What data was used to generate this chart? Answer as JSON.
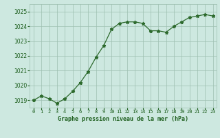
{
  "x": [
    0,
    1,
    2,
    3,
    4,
    5,
    6,
    7,
    8,
    9,
    10,
    11,
    12,
    13,
    14,
    15,
    16,
    17,
    18,
    19,
    20,
    21,
    22,
    23
  ],
  "y": [
    1019.0,
    1019.3,
    1019.1,
    1018.8,
    1019.1,
    1019.6,
    1020.2,
    1020.95,
    1021.9,
    1022.7,
    1023.8,
    1024.2,
    1024.3,
    1024.3,
    1024.2,
    1023.7,
    1023.7,
    1023.6,
    1024.0,
    1024.3,
    1024.6,
    1024.7,
    1024.8,
    1024.7
  ],
  "line_color": "#2d6a2d",
  "marker": "*",
  "background_color": "#cde8e0",
  "grid_color": "#9dbfb0",
  "xlabel": "Graphe pression niveau de la mer (hPa)",
  "xlabel_color": "#1a5c1a",
  "tick_color": "#1a5c1a",
  "ylim": [
    1018.5,
    1025.5
  ],
  "yticks": [
    1019,
    1020,
    1021,
    1022,
    1023,
    1024,
    1025
  ],
  "xticks": [
    0,
    1,
    2,
    3,
    4,
    5,
    6,
    7,
    8,
    9,
    10,
    11,
    12,
    13,
    14,
    15,
    16,
    17,
    18,
    19,
    20,
    21,
    22,
    23
  ],
  "xlim": [
    -0.5,
    23.5
  ]
}
